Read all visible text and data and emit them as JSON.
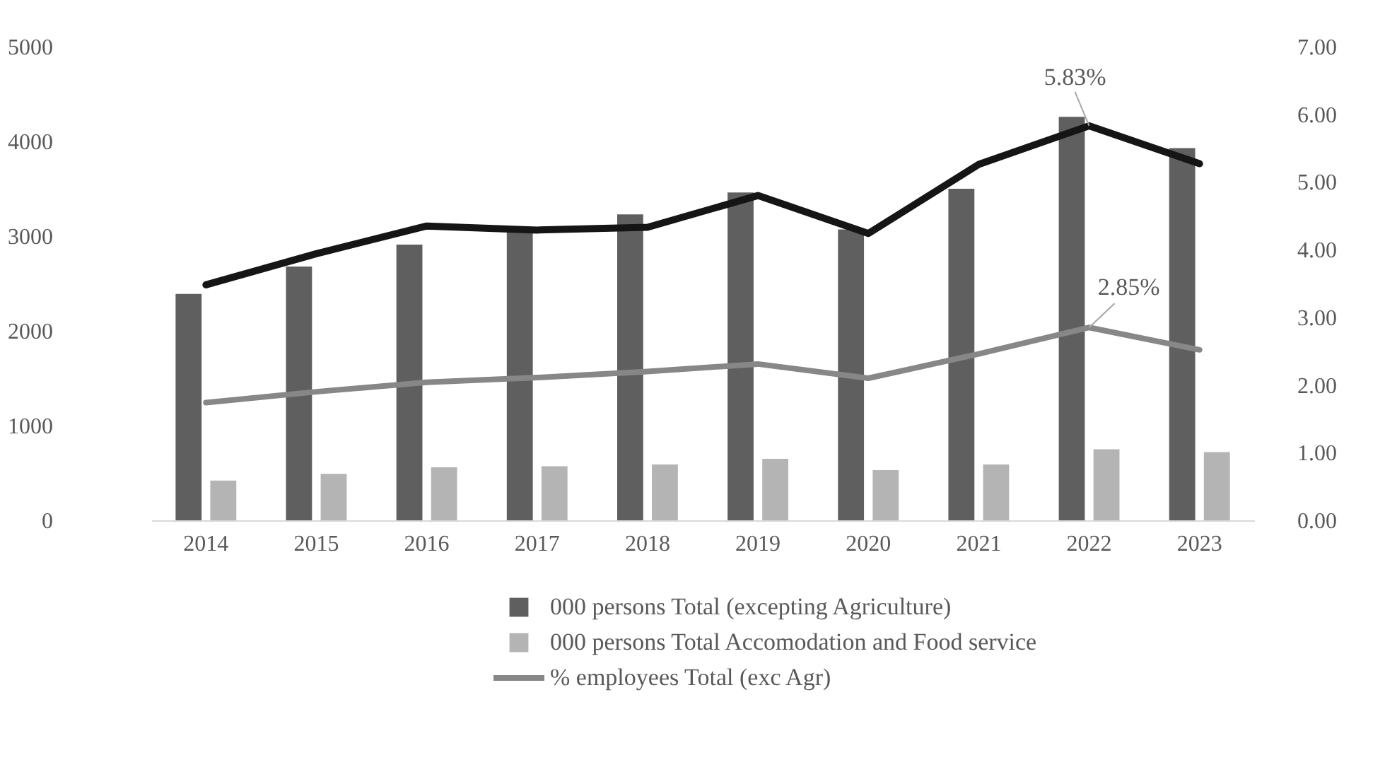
{
  "chart_data": {
    "type": "bar",
    "categories": [
      "2014",
      "2015",
      "2016",
      "2017",
      "2018",
      "2019",
      "2020",
      "2021",
      "2022",
      "2023"
    ],
    "series": [
      {
        "name": "000 persons Total (excepting Agriculture)",
        "color": "#5f5f5f",
        "values": [
          2390,
          2680,
          2910,
          3070,
          3230,
          3460,
          3070,
          3500,
          4260,
          3930
        ]
      },
      {
        "name": "000 persons Total Accomodation and Food service",
        "color": "#b4b4b4",
        "values": [
          420,
          490,
          560,
          570,
          590,
          650,
          530,
          590,
          750,
          720
        ]
      },
      {
        "type": "line",
        "axis": "y2",
        "color": "#151515",
        "values": [
          3.48,
          3.94,
          4.35,
          4.29,
          4.33,
          4.8,
          4.24,
          5.26,
          5.83,
          5.27
        ]
      },
      {
        "name": "% employees Total (exc Agr)",
        "type": "line",
        "axis": "y2",
        "color": "#878787",
        "values": [
          1.74,
          1.9,
          2.04,
          2.11,
          2.2,
          2.31,
          2.1,
          2.46,
          2.85,
          2.52
        ]
      }
    ],
    "ylim": [
      0,
      5000
    ],
    "yticks": [
      0,
      1000,
      2000,
      3000,
      4000,
      5000
    ],
    "y2lim": [
      0,
      7
    ],
    "y2ticks": [
      {
        "value": 0,
        "label": "0.00"
      },
      {
        "value": 1,
        "label": "1.00"
      },
      {
        "value": 2,
        "label": "2.00"
      },
      {
        "value": 3,
        "label": "3.00"
      },
      {
        "value": 4,
        "label": "4.00"
      },
      {
        "value": 5,
        "label": "5.00"
      },
      {
        "value": 6,
        "label": "6.00"
      },
      {
        "value": 7,
        "label": "7.00"
      }
    ],
    "annotations": [
      "5.83%",
      "2.85%"
    ],
    "grid": false,
    "legend": "bottom",
    "line_style": "solid"
  }
}
